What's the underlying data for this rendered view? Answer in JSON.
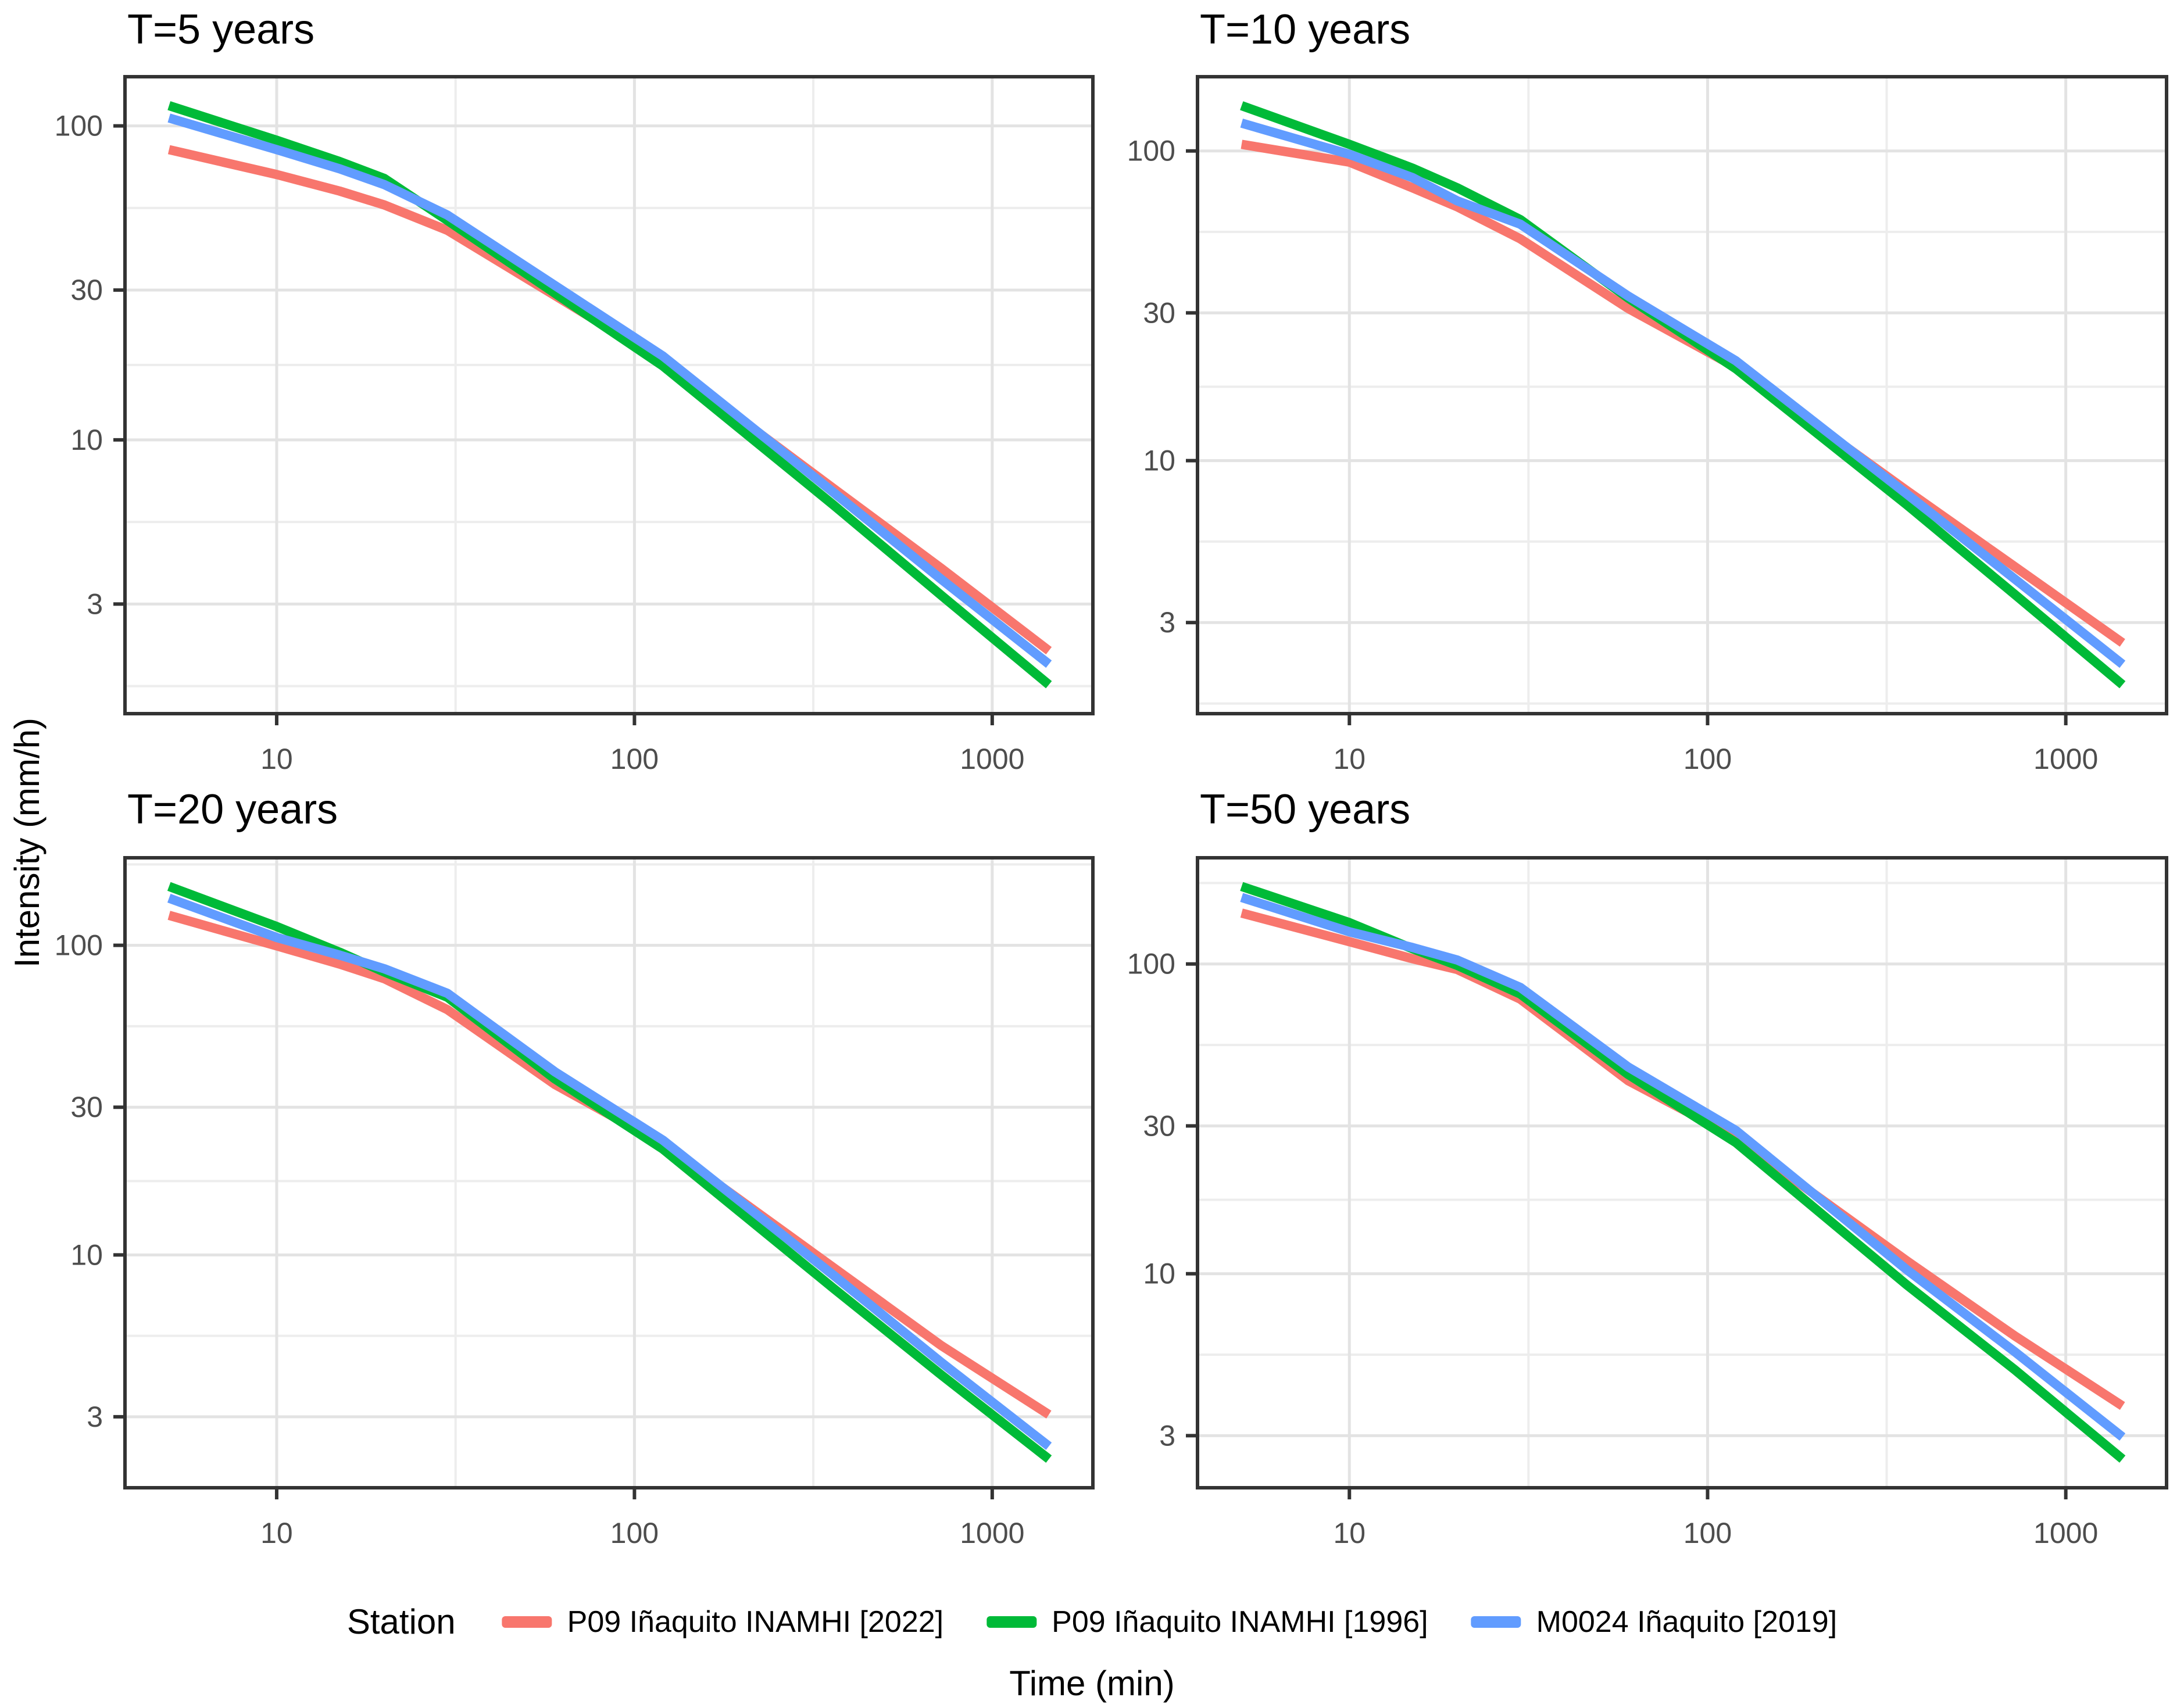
{
  "figure": {
    "background": "#ffffff",
    "panel_border_color": "#333333",
    "grid_major_color": "#e3e3e3",
    "grid_minor_color": "#ededed",
    "tick_color": "#333333",
    "tick_label_color": "#4d4d4d",
    "line_width": 16
  },
  "legend": {
    "title": "Station",
    "items": [
      {
        "label": "P09 Iñaquito INAMHI [2022]",
        "color": "#F8766D"
      },
      {
        "label": "P09 Iñaquito INAMHI [1996]",
        "color": "#00BA38"
      },
      {
        "label": "M0024 Iñaquito [2019]",
        "color": "#619CFF"
      }
    ]
  },
  "chart_data": {
    "type": "line",
    "log_scale": "xy",
    "title": "",
    "xlabel": "Time (min)",
    "ylabel": "Intensity (mm/h)",
    "x": [
      5,
      10,
      15,
      20,
      30,
      60,
      120,
      360,
      720,
      1440
    ],
    "x_ticks": [
      10,
      100,
      1000
    ],
    "y_ticks": [
      3,
      10,
      30,
      100
    ],
    "grid": true,
    "legend_position": "bottom",
    "panels": [
      {
        "title": "T=5 years",
        "series": [
          {
            "name": "P09 Iñaquito INAMHI [2022]",
            "color": "#F8766D",
            "values": [
              84,
              70,
              62,
              56,
              46.5,
              28.8,
              17.8,
              7.0,
              3.9,
              2.13
            ]
          },
          {
            "name": "P09 Iñaquito INAMHI [1996]",
            "color": "#00BA38",
            "values": [
              116,
              90,
              77,
              68,
              50,
              29.3,
              17.2,
              6.2,
              3.2,
              1.66
            ]
          },
          {
            "name": "M0024 Iñaquito [2019]",
            "color": "#619CFF",
            "values": [
              106,
              84,
              73,
              65,
              52,
              31,
              18.5,
              6.8,
              3.6,
              1.93
            ]
          }
        ]
      },
      {
        "title": "T=10 years",
        "series": [
          {
            "name": "P09 Iñaquito INAMHI [2022]",
            "color": "#F8766D",
            "values": [
              105,
              92,
              76,
              66,
              52,
              31,
              20,
              8.0,
              4.55,
              2.58
            ]
          },
          {
            "name": "P09 Iñaquito INAMHI [1996]",
            "color": "#00BA38",
            "values": [
              140,
              105,
              88,
              76,
              60,
              33.5,
              19.8,
              7.2,
              3.7,
              1.89
            ]
          },
          {
            "name": "M0024 Iñaquito [2019]",
            "color": "#619CFF",
            "values": [
              123,
              97.5,
              82,
              69,
              58,
              34,
              21,
              7.8,
              4.15,
              2.2
            ]
          }
        ]
      },
      {
        "title": "T=20 years",
        "series": [
          {
            "name": "P09 Iñaquito INAMHI [2022]",
            "color": "#F8766D",
            "values": [
              125,
              99.6,
              87,
              78,
              62,
              35.5,
              22.8,
              9.1,
              5.1,
              3.05
            ]
          },
          {
            "name": "P09 Iñaquito INAMHI [1996]",
            "color": "#00BA38",
            "values": [
              155,
              115,
              95,
              82,
              68,
              37,
              22,
              7.8,
              4.1,
              2.19
            ]
          },
          {
            "name": "M0024 Iñaquito [2019]",
            "color": "#619CFF",
            "values": [
              142,
              106,
              93,
              84,
              70,
              39,
              23.5,
              8.6,
              4.5,
              2.41
            ]
          }
        ]
      },
      {
        "title": "T=50 years",
        "series": [
          {
            "name": "P09 Iñaquito INAMHI [2022]",
            "color": "#F8766D",
            "values": [
              146,
              118,
              104,
              96,
              77,
              42,
              27.5,
              11,
              6.3,
              3.74
            ]
          },
          {
            "name": "P09 Iñaquito INAMHI [1996]",
            "color": "#00BA38",
            "values": [
              178,
              136,
              112,
              99,
              80,
              44,
              26.5,
              9.2,
              4.9,
              2.52
            ]
          },
          {
            "name": "M0024 Iñaquito [2019]",
            "color": "#619CFF",
            "values": [
              164,
              127,
              113,
              103,
              84,
              46.5,
              29,
              10.3,
              5.6,
              2.97
            ]
          }
        ]
      }
    ]
  }
}
